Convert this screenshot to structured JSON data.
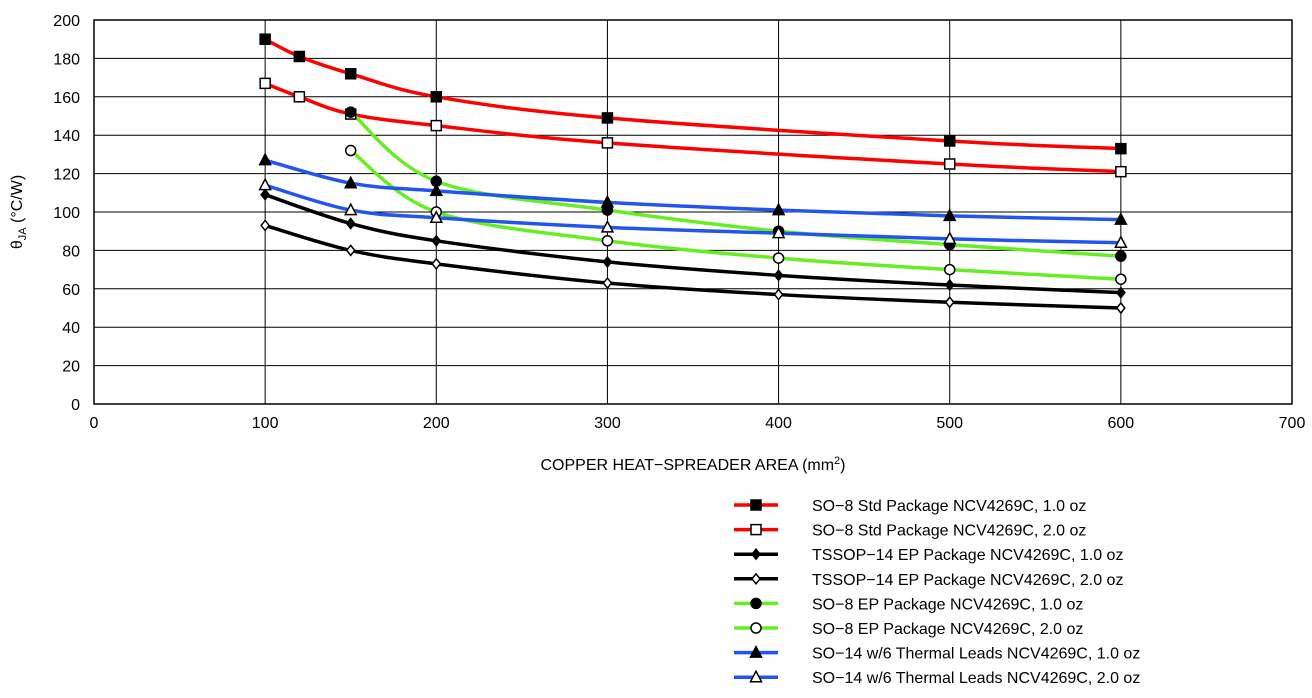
{
  "chart_data": {
    "type": "line",
    "xlabel": "COPPER HEAT−SPREADER AREA (mm",
    "xlabel_sup": "2",
    "xlabel_end": ")",
    "ylabel_theta": "θ",
    "ylabel_sub": "JA",
    "ylabel_rest": " (°C/W)",
    "xlim": [
      0,
      700
    ],
    "ylim": [
      0,
      200
    ],
    "xticks": [
      0,
      100,
      200,
      300,
      400,
      500,
      600,
      700
    ],
    "yticks": [
      0,
      20,
      40,
      60,
      80,
      100,
      120,
      140,
      160,
      180,
      200
    ],
    "grid": true,
    "legend_position": "bottom-right",
    "series": [
      {
        "name": "SO−8 Std Package NCV4269C, 1.0 oz",
        "color": "#ff0000",
        "marker": "square-filled",
        "x": [
          100,
          120,
          150,
          200,
          300,
          500,
          600
        ],
        "y": [
          190,
          181,
          172,
          160,
          149,
          137,
          133
        ]
      },
      {
        "name": "SO−8 Std Package NCV4269C, 2.0 oz",
        "color": "#ff0000",
        "marker": "square-open",
        "x": [
          100,
          120,
          150,
          200,
          300,
          500,
          600
        ],
        "y": [
          167,
          160,
          151,
          145,
          136,
          125,
          121
        ]
      },
      {
        "name": "TSSOP−14 EP Package NCV4269C, 1.0 oz",
        "color": "#000000",
        "marker": "diamond-filled",
        "x": [
          100,
          150,
          200,
          300,
          400,
          500,
          600
        ],
        "y": [
          109,
          94,
          85,
          74,
          67,
          62,
          58
        ]
      },
      {
        "name": "TSSOP−14 EP Package NCV4269C, 2.0 oz",
        "color": "#000000",
        "marker": "diamond-open",
        "x": [
          100,
          150,
          200,
          300,
          400,
          500,
          600
        ],
        "y": [
          93,
          80,
          73,
          63,
          57,
          53,
          50
        ]
      },
      {
        "name": "SO−8 EP Package NCV4269C, 1.0 oz",
        "color": "#66ee22",
        "marker": "circle-filled",
        "x": [
          150,
          200,
          300,
          400,
          500,
          600
        ],
        "y": [
          152,
          116,
          101,
          90,
          83,
          77
        ]
      },
      {
        "name": "SO−8 EP Package NCV4269C, 2.0 oz",
        "color": "#66ee22",
        "marker": "circle-open",
        "x": [
          150,
          200,
          300,
          400,
          500,
          600
        ],
        "y": [
          132,
          100,
          85,
          76,
          70,
          65
        ]
      },
      {
        "name": "SO−14 w/6 Thermal Leads NCV4269C, 1.0 oz",
        "color": "#2255ee",
        "marker": "triangle-filled",
        "x": [
          100,
          150,
          200,
          300,
          400,
          500,
          600
        ],
        "y": [
          127,
          115,
          111,
          105,
          101,
          98,
          96
        ]
      },
      {
        "name": "SO−14 w/6 Thermal Leads NCV4269C, 2.0 oz",
        "color": "#2255ee",
        "marker": "triangle-open",
        "x": [
          100,
          150,
          200,
          300,
          400,
          500,
          600
        ],
        "y": [
          114,
          101,
          97,
          92,
          89,
          86,
          84
        ]
      }
    ]
  }
}
